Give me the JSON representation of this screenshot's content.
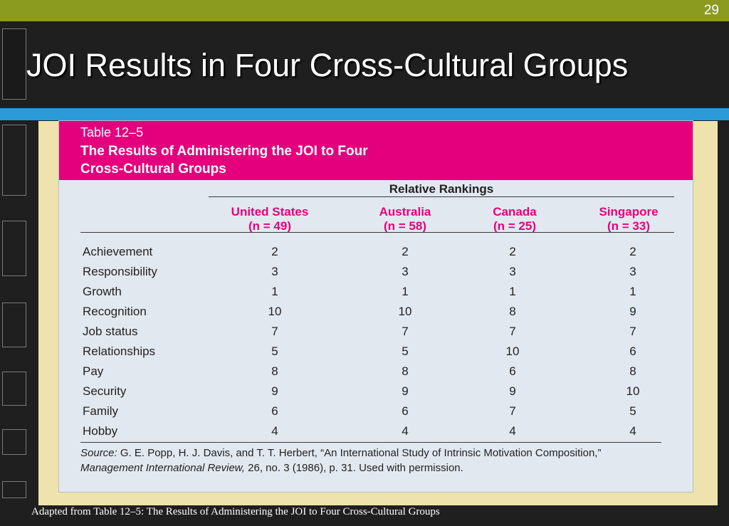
{
  "slide": {
    "number": "29",
    "title": "JOI Results in Four Cross-Cultural Groups",
    "footer": "Adapted from Table 12–5: The Results of Administering the JOI to Four Cross-Cultural Groups"
  },
  "table": {
    "label": "Table 12–5",
    "caption": "The Results of Administering the JOI to Four\nCross-Cultural Groups",
    "group_header": "Relative Rankings",
    "columns": [
      {
        "name": "United States",
        "n": "(n = 49)"
      },
      {
        "name": "Australia",
        "n": "(n = 58)"
      },
      {
        "name": "Canada",
        "n": "(n = 25)"
      },
      {
        "name": "Singapore",
        "n": "(n = 33)"
      }
    ],
    "rows": [
      {
        "label": "Achievement",
        "values": [
          "2",
          "2",
          "2",
          "2"
        ]
      },
      {
        "label": "Responsibility",
        "values": [
          "3",
          "3",
          "3",
          "3"
        ]
      },
      {
        "label": "Growth",
        "values": [
          "1",
          "1",
          "1",
          "1"
        ]
      },
      {
        "label": "Recognition",
        "values": [
          "10",
          "10",
          "8",
          "9"
        ]
      },
      {
        "label": "Job status",
        "values": [
          "7",
          "7",
          "7",
          "7"
        ]
      },
      {
        "label": "Relationships",
        "values": [
          "5",
          "5",
          "10",
          "6"
        ]
      },
      {
        "label": "Pay",
        "values": [
          "8",
          "8",
          "6",
          "8"
        ]
      },
      {
        "label": "Security",
        "values": [
          "9",
          "9",
          "9",
          "10"
        ]
      },
      {
        "label": "Family",
        "values": [
          "6",
          "6",
          "7",
          "5"
        ]
      },
      {
        "label": "Hobby",
        "values": [
          "4",
          "4",
          "4",
          "4"
        ]
      }
    ],
    "source": {
      "prefix": "Source:",
      "part1": " G. E. Popp, H. J. Davis, and T. T. Herbert, “An International Study of Intrinsic Motivation Composition,” ",
      "journal": "Management International Review,",
      "part2": " 26, no. 3 (1986), p. 31. Used with permission."
    }
  },
  "colors": {
    "accent": "#e4007d",
    "top_bar": "#8a9b1f",
    "blue_band": "#2a9bd6",
    "background": "#1f1f1f"
  }
}
